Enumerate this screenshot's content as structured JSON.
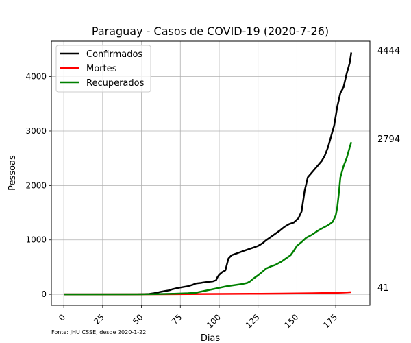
{
  "chart_data": {
    "type": "line",
    "title": "Paraguay - Casos de COVID-19 (2020-7-26)",
    "xlabel": "Dias",
    "ylabel": "Pessoas",
    "source_note": "Fonte: JHU CSSE, desde 2020-1-22",
    "xlim": [
      -8,
      197
    ],
    "ylim": [
      -200,
      4650
    ],
    "xticks": [
      0,
      25,
      50,
      75,
      100,
      125,
      150,
      175
    ],
    "yticks": [
      0,
      1000,
      2000,
      3000,
      4000
    ],
    "grid": true,
    "legend_position": "top-left",
    "end_labels": [
      "4444",
      "41",
      "2794"
    ],
    "series": [
      {
        "name": "Confirmados",
        "color": "#000000",
        "points": [
          [
            0,
            0
          ],
          [
            40,
            0
          ],
          [
            48,
            1
          ],
          [
            52,
            5
          ],
          [
            55,
            8
          ],
          [
            58,
            20
          ],
          [
            60,
            30
          ],
          [
            62,
            45
          ],
          [
            65,
            60
          ],
          [
            68,
            75
          ],
          [
            70,
            95
          ],
          [
            73,
            115
          ],
          [
            76,
            130
          ],
          [
            80,
            150
          ],
          [
            83,
            175
          ],
          [
            85,
            200
          ],
          [
            88,
            210
          ],
          [
            90,
            220
          ],
          [
            93,
            230
          ],
          [
            96,
            240
          ],
          [
            98,
            260
          ],
          [
            99,
            320
          ],
          [
            100,
            360
          ],
          [
            102,
            410
          ],
          [
            104,
            440
          ],
          [
            106,
            660
          ],
          [
            108,
            720
          ],
          [
            110,
            740
          ],
          [
            113,
            770
          ],
          [
            116,
            800
          ],
          [
            119,
            830
          ],
          [
            122,
            860
          ],
          [
            125,
            890
          ],
          [
            128,
            940
          ],
          [
            130,
            990
          ],
          [
            133,
            1050
          ],
          [
            136,
            1110
          ],
          [
            139,
            1170
          ],
          [
            142,
            1240
          ],
          [
            145,
            1290
          ],
          [
            148,
            1320
          ],
          [
            151,
            1400
          ],
          [
            153,
            1520
          ],
          [
            155,
            1900
          ],
          [
            157,
            2150
          ],
          [
            160,
            2250
          ],
          [
            163,
            2350
          ],
          [
            166,
            2450
          ],
          [
            168,
            2550
          ],
          [
            170,
            2700
          ],
          [
            172,
            2900
          ],
          [
            174,
            3100
          ],
          [
            176,
            3450
          ],
          [
            178,
            3700
          ],
          [
            180,
            3800
          ],
          [
            182,
            4050
          ],
          [
            184,
            4250
          ],
          [
            185,
            4444
          ]
        ]
      },
      {
        "name": "Mortes",
        "color": "#ff0000",
        "points": [
          [
            0,
            0
          ],
          [
            60,
            2
          ],
          [
            80,
            5
          ],
          [
            100,
            8
          ],
          [
            120,
            11
          ],
          [
            140,
            14
          ],
          [
            160,
            20
          ],
          [
            175,
            28
          ],
          [
            180,
            33
          ],
          [
            185,
            41
          ]
        ]
      },
      {
        "name": "Recuperados",
        "color": "#008000",
        "points": [
          [
            0,
            0
          ],
          [
            50,
            2
          ],
          [
            60,
            5
          ],
          [
            70,
            10
          ],
          [
            80,
            20
          ],
          [
            85,
            30
          ],
          [
            90,
            60
          ],
          [
            95,
            90
          ],
          [
            100,
            120
          ],
          [
            105,
            150
          ],
          [
            110,
            170
          ],
          [
            115,
            190
          ],
          [
            118,
            210
          ],
          [
            120,
            240
          ],
          [
            122,
            290
          ],
          [
            125,
            350
          ],
          [
            128,
            420
          ],
          [
            130,
            470
          ],
          [
            133,
            510
          ],
          [
            136,
            540
          ],
          [
            140,
            600
          ],
          [
            143,
            660
          ],
          [
            146,
            720
          ],
          [
            148,
            800
          ],
          [
            150,
            890
          ],
          [
            153,
            960
          ],
          [
            156,
            1040
          ],
          [
            160,
            1100
          ],
          [
            163,
            1160
          ],
          [
            166,
            1210
          ],
          [
            170,
            1270
          ],
          [
            173,
            1330
          ],
          [
            175,
            1450
          ],
          [
            176,
            1600
          ],
          [
            177,
            1850
          ],
          [
            178,
            2150
          ],
          [
            180,
            2350
          ],
          [
            182,
            2500
          ],
          [
            184,
            2700
          ],
          [
            185,
            2794
          ]
        ]
      }
    ]
  }
}
